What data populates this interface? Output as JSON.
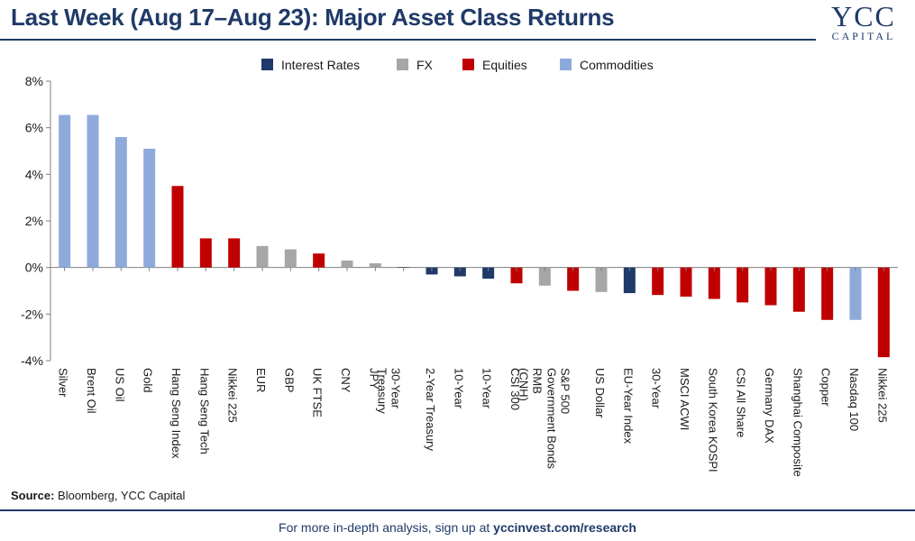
{
  "title": "Last Week (Aug 17–Aug 23): Major Asset Class Returns",
  "logo": {
    "main": "YCC",
    "sub": "CAPITAL"
  },
  "source": {
    "label": "Source:",
    "text": "Bloomberg, YCC Capital"
  },
  "footer": {
    "text": "For more in-depth analysis, sign up at",
    "link": "yccinvest.com/research"
  },
  "colors": {
    "Interest Rates": "#1f3a68",
    "FX": "#a6a6a6",
    "Equities": "#c00000",
    "Commodities": "#8eaadb"
  },
  "chart_data": {
    "type": "bar",
    "legend": [
      "Interest Rates",
      "FX",
      "Equities",
      "Commodities"
    ],
    "legend_position": "top-center",
    "ylim": [
      -4,
      8
    ],
    "yticks": [
      -4,
      -2,
      0,
      2,
      4,
      6,
      8
    ],
    "ytick_labels": [
      "-4%",
      "-2%",
      "0%",
      "2%",
      "4%",
      "6%",
      "8%"
    ],
    "categories": [
      "Silver",
      "Brent Oil",
      "US Oil",
      "Gold",
      "Hang Seng Index",
      "Hang Seng Tech",
      "Nikkei 225",
      "EUR",
      "GBP",
      "UK FTSE",
      "CNY",
      "JPY",
      "30-Year\nTreasury",
      "2-Year Treasury",
      "10-Year",
      "10-Year",
      "CSI 300",
      "RMB\n(CNH)",
      "S&P 500\nGovernment Bonds",
      "US Dollar",
      "EU-Year Index",
      "30-Year",
      "MSCI ACWI",
      "South Korea KOSPI",
      "CSI All Share",
      "Germany DAX",
      "Shanghai Composite",
      "Copper",
      "Nasdaq 100",
      "Nikkei 225"
    ],
    "groups": [
      "Commodities",
      "Commodities",
      "Commodities",
      "Commodities",
      "Equities",
      "Equities",
      "Equities",
      "FX",
      "FX",
      "Equities",
      "FX",
      "FX",
      "Interest Rates",
      "Interest Rates",
      "Interest Rates",
      "Interest Rates",
      "Equities",
      "FX",
      "Equities",
      "FX",
      "Interest Rates",
      "Equities",
      "Equities",
      "Equities",
      "Equities",
      "Equities",
      "Equities",
      "Equities",
      "Commodities",
      "Equities"
    ],
    "values": [
      6.55,
      6.55,
      5.6,
      5.1,
      3.5,
      1.25,
      1.25,
      0.92,
      0.78,
      0.6,
      0.3,
      0.18,
      0.02,
      -0.3,
      -0.38,
      -0.48,
      -0.68,
      -0.78,
      -1.0,
      -1.05,
      -1.1,
      -1.18,
      -1.25,
      -1.35,
      -1.5,
      -1.62,
      -1.9,
      -2.25,
      -2.25,
      -3.85
    ]
  }
}
